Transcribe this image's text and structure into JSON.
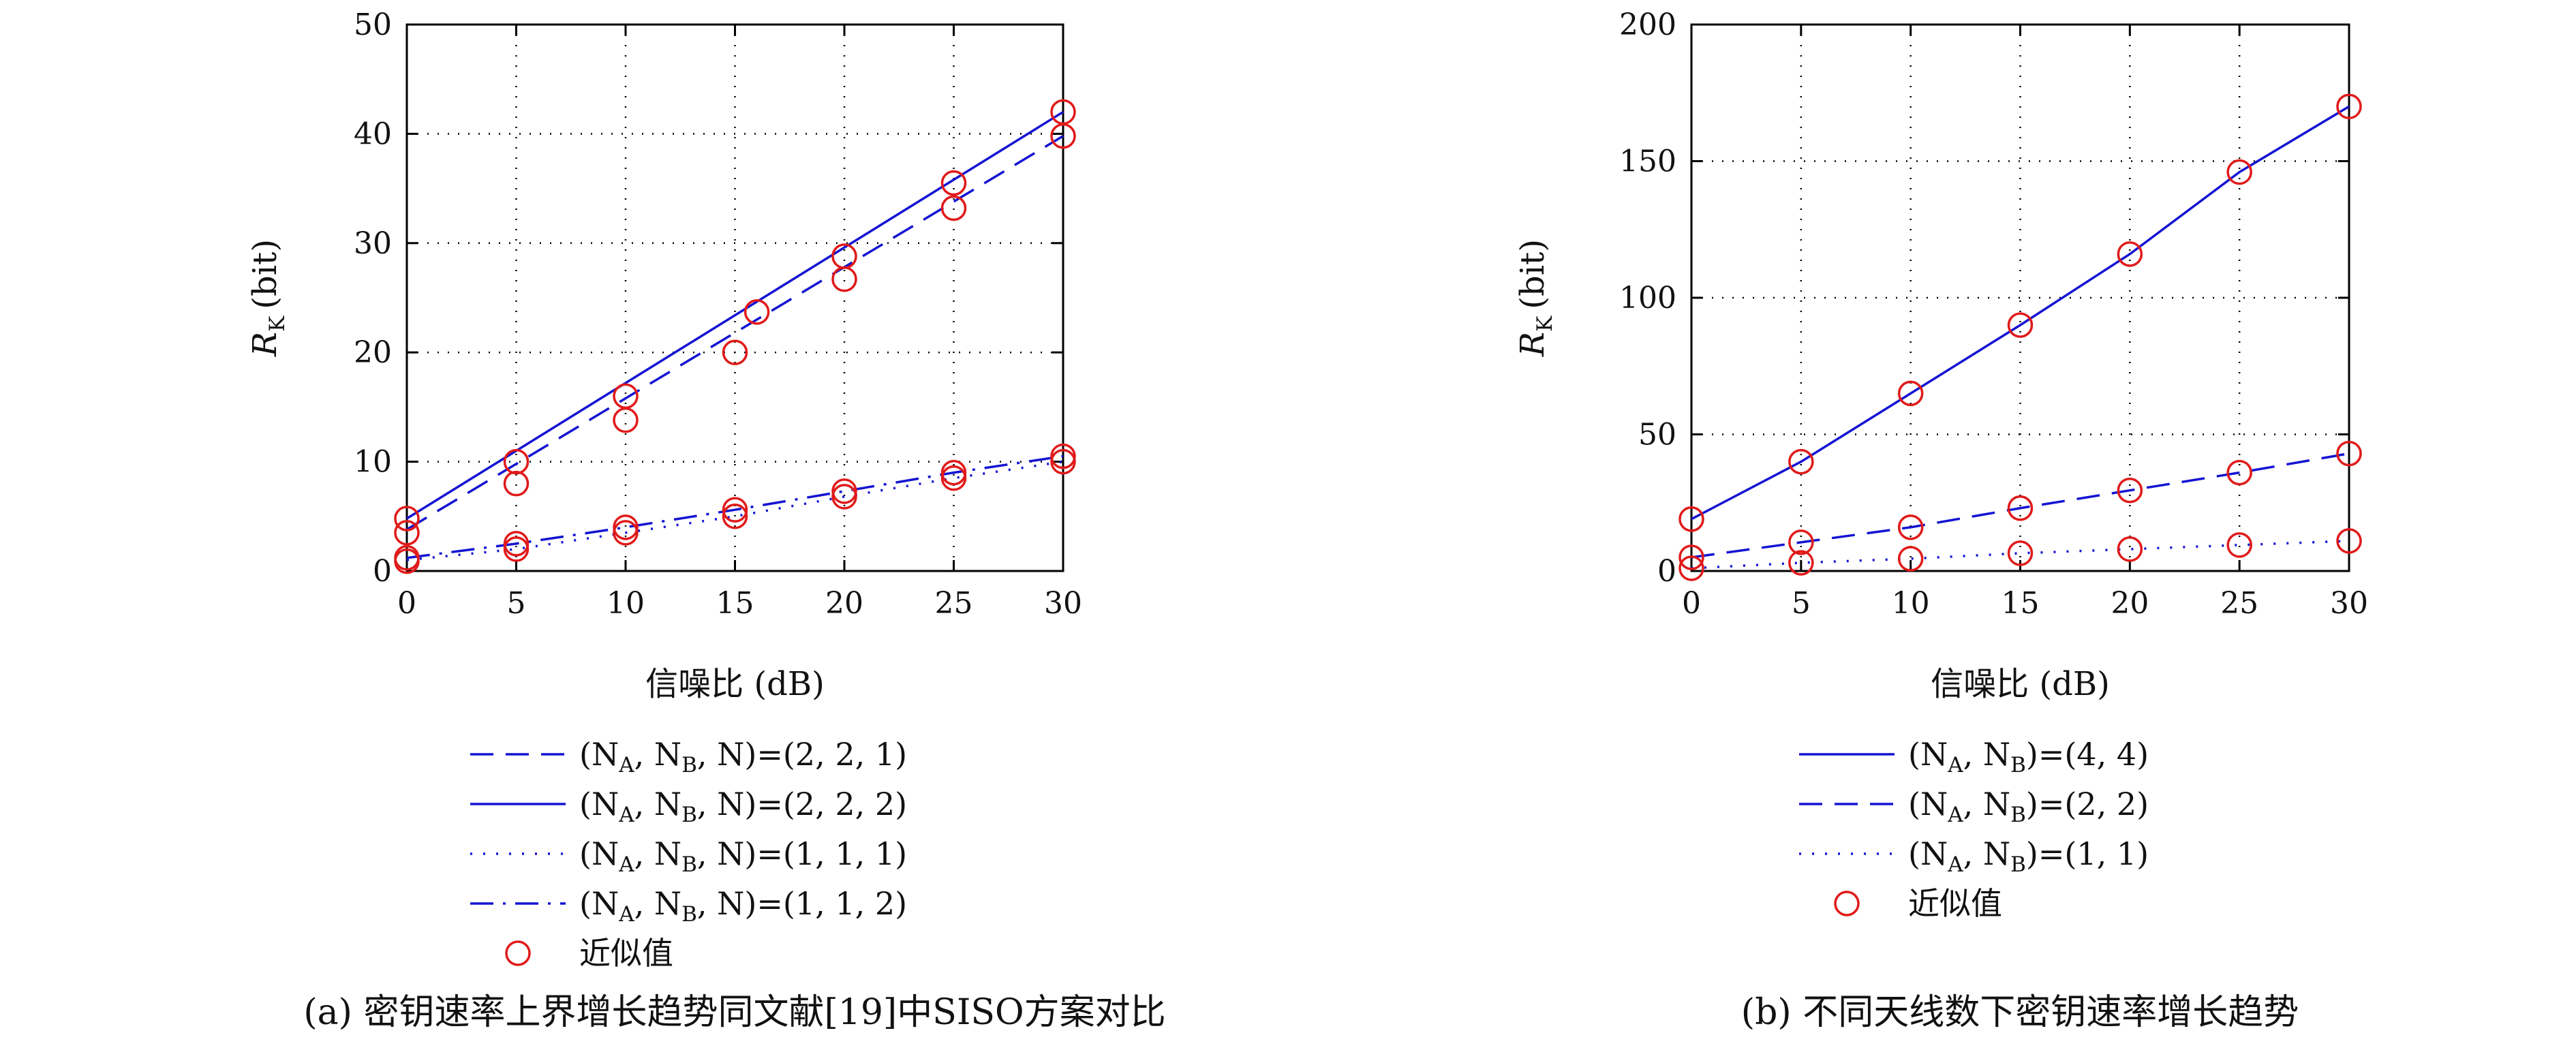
{
  "colors": {
    "line": "#1414d2",
    "marker": "#e01a1a",
    "axis": "#000000",
    "grid": "#000000"
  },
  "chart_data": [
    {
      "type": "line",
      "caption": "(a) 密钥速率上界增长趋势同文献[19]中SISO方案对比",
      "xlabel": "信噪比 (dB)",
      "ylabel": {
        "main": "R",
        "sub": "K",
        "unit": "(bit)"
      },
      "xlim": [
        0,
        30
      ],
      "ylim": [
        0,
        50
      ],
      "xticks": [
        "0",
        "5",
        "10",
        "15",
        "20",
        "25",
        "30"
      ],
      "yticks": [
        "0",
        "10",
        "20",
        "30",
        "40",
        "50"
      ],
      "grid": true,
      "legend_position": "below",
      "series": [
        {
          "label": {
            "a": "(N",
            "as": "A",
            "b": ", N",
            "bs": "B",
            "c": ", N)=(2, 2, 1)"
          },
          "style": "dashed",
          "x": [
            0,
            30
          ],
          "y": [
            3.8,
            39.8
          ]
        },
        {
          "label": {
            "a": "(N",
            "as": "A",
            "b": ", N",
            "bs": "B",
            "c": ", N)=(2, 2, 2)"
          },
          "style": "solid",
          "x": [
            0,
            30
          ],
          "y": [
            4.8,
            42.0
          ]
        },
        {
          "label": {
            "a": "(N",
            "as": "A",
            "b": ", N",
            "bs": "B",
            "c": ", N)=(1, 1, 1)"
          },
          "style": "dotted",
          "x": [
            0,
            5,
            10,
            15,
            20,
            25,
            30
          ],
          "y": [
            1.0,
            2.0,
            3.5,
            5.0,
            6.8,
            8.5,
            10.0
          ]
        },
        {
          "label": {
            "a": "(N",
            "as": "A",
            "b": ", N",
            "bs": "B",
            "c": ", N)=(1, 1, 2)"
          },
          "style": "dashdot",
          "x": [
            0,
            5,
            10,
            15,
            20,
            25,
            30
          ],
          "y": [
            1.2,
            2.5,
            4.0,
            5.6,
            7.3,
            9.0,
            10.5
          ]
        }
      ],
      "approx_label": "近似值",
      "approx_points": [
        [
          0,
          4.8
        ],
        [
          0,
          3.5
        ],
        [
          0,
          1.2
        ],
        [
          0,
          0.9
        ],
        [
          5,
          10.0
        ],
        [
          5,
          8.0
        ],
        [
          5,
          2.5
        ],
        [
          5,
          2.0
        ],
        [
          10,
          16.0
        ],
        [
          10,
          13.8
        ],
        [
          10,
          4.0
        ],
        [
          10,
          3.5
        ],
        [
          15,
          20.0
        ],
        [
          16,
          23.7
        ],
        [
          15,
          5.6
        ],
        [
          15,
          5.0
        ],
        [
          20,
          28.8
        ],
        [
          20,
          26.7
        ],
        [
          20,
          7.3
        ],
        [
          20,
          6.8
        ],
        [
          25,
          35.5
        ],
        [
          25,
          33.2
        ],
        [
          25,
          9.0
        ],
        [
          25,
          8.5
        ],
        [
          30,
          42.0
        ],
        [
          30,
          39.8
        ],
        [
          30,
          10.5
        ],
        [
          30,
          10.0
        ]
      ]
    },
    {
      "type": "line",
      "caption": "(b) 不同天线数下密钥速率增长趋势",
      "xlabel": "信噪比 (dB)",
      "ylabel": {
        "main": "R",
        "sub": "K",
        "unit": "(bit)"
      },
      "xlim": [
        0,
        30
      ],
      "ylim": [
        0,
        200
      ],
      "xticks": [
        "0",
        "5",
        "10",
        "15",
        "20",
        "25",
        "30"
      ],
      "yticks": [
        "0",
        "50",
        "100",
        "150",
        "200"
      ],
      "grid": true,
      "legend_position": "below",
      "series": [
        {
          "label": {
            "a": "(N",
            "as": "A",
            "b": ", N",
            "bs": "B",
            "c": ")=(4, 4)"
          },
          "style": "solid",
          "x": [
            0,
            5,
            10,
            15,
            20,
            25,
            30
          ],
          "y": [
            19,
            40,
            65,
            90,
            116,
            146,
            170
          ]
        },
        {
          "label": {
            "a": "(N",
            "as": "A",
            "b": ", N",
            "bs": "B",
            "c": ")=(2, 2)"
          },
          "style": "dashed",
          "x": [
            0,
            5,
            10,
            15,
            20,
            25,
            30
          ],
          "y": [
            5,
            10.5,
            16,
            23,
            29.5,
            36,
            43
          ]
        },
        {
          "label": {
            "a": "(N",
            "as": "A",
            "b": ", N",
            "bs": "B",
            "c": ")=(1, 1)"
          },
          "style": "dotted",
          "x": [
            0,
            5,
            10,
            15,
            20,
            25,
            30
          ],
          "y": [
            1,
            3,
            4.5,
            6.5,
            8,
            9.5,
            11
          ]
        }
      ],
      "approx_label": "近似值",
      "approx_points": [
        [
          0,
          19
        ],
        [
          0,
          5
        ],
        [
          0,
          1
        ],
        [
          5,
          40
        ],
        [
          5,
          10.5
        ],
        [
          5,
          3
        ],
        [
          10,
          65
        ],
        [
          10,
          16
        ],
        [
          10,
          4.5
        ],
        [
          15,
          90
        ],
        [
          15,
          23
        ],
        [
          15,
          6.5
        ],
        [
          20,
          116
        ],
        [
          20,
          29.5
        ],
        [
          20,
          8
        ],
        [
          25,
          146
        ],
        [
          25,
          36
        ],
        [
          25,
          9.5
        ],
        [
          30,
          170
        ],
        [
          30,
          43
        ],
        [
          30,
          11
        ]
      ]
    }
  ]
}
